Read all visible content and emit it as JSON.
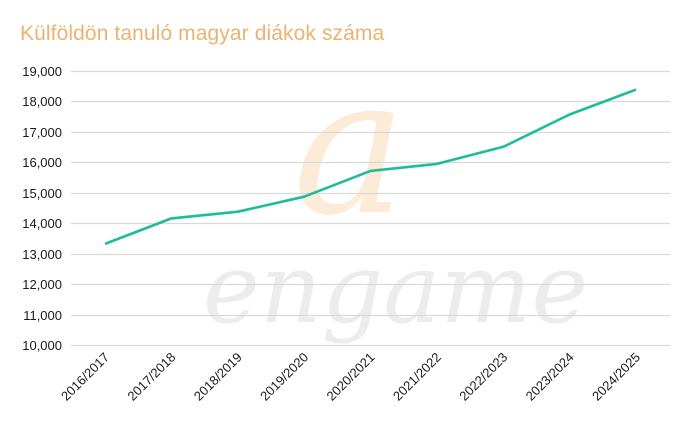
{
  "chart_data": {
    "type": "line",
    "title": "Külföldön tanuló magyar diákok száma",
    "xlabel": "",
    "ylabel": "",
    "categories": [
      "2016/2017",
      "2017/2018",
      "2018/2019",
      "2019/2020",
      "2020/2021",
      "2021/2022",
      "2022/2023",
      "2023/2024",
      "2024/2025"
    ],
    "series": [
      {
        "name": "Külföldön tanuló magyar diákok",
        "color": "#1fbc9c",
        "values": [
          13320,
          14160,
          14380,
          14870,
          15720,
          15950,
          16510,
          17570,
          18390
        ]
      }
    ],
    "ylim": [
      10000,
      19000
    ],
    "yticks": [
      10000,
      11000,
      12000,
      13000,
      14000,
      15000,
      16000,
      17000,
      18000,
      19000
    ],
    "ytick_labels": [
      "10,000",
      "11,000",
      "12,000",
      "13,000",
      "14,000",
      "15,000",
      "16,000",
      "17,000",
      "18,000",
      "19,000"
    ],
    "grid": true,
    "legend": "none",
    "watermark": {
      "logo_letter": "a",
      "brand": "engame",
      "logo_color": "#f8dcb8",
      "brand_color": "#d6d6d6"
    },
    "colors": {
      "title": "#ecb272",
      "line": "#1fbc9c",
      "grid": "#d9d9d9",
      "tick_text": "#1a1a1a"
    }
  }
}
